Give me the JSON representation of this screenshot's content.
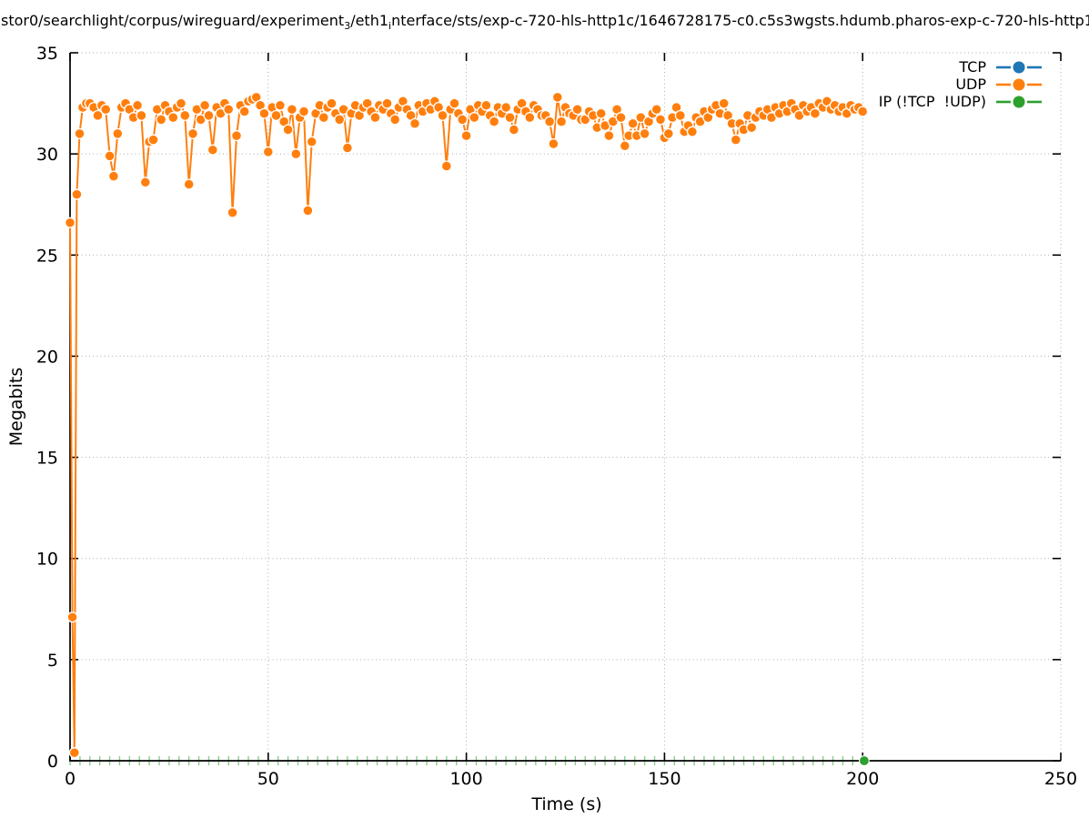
{
  "title": {
    "segments": [
      {
        "text": "stor0/searchlight/corpus/wireguard/experiment"
      },
      {
        "text": "3",
        "sub": true
      },
      {
        "text": "/eth1"
      },
      {
        "text": "i",
        "sub": true
      },
      {
        "text": "nterface/sts/exp-c-720-hls-http1c/1646728175-c0.c5s3wgsts.hdumb.pharos-exp-c-720-hls-http1"
      }
    ]
  },
  "legend": {
    "items": [
      {
        "label": "TCP",
        "color": "#1f77b4"
      },
      {
        "label": "UDP",
        "color": "#ff7f0e"
      },
      {
        "label": "IP (!TCP  !UDP)",
        "color": "#2ca02c"
      }
    ]
  },
  "chart_data": {
    "type": "line",
    "title": "stor0/searchlight/corpus/wireguard/experiment_3/eth1_interface/sts/exp-c-720-hls-http1c/1646728175-c0.c5s3wgsts.hdumb.pharos-exp-c-720-hls-http1",
    "xlabel": "Time (s)",
    "ylabel": "Megabits",
    "xlim": [
      0,
      250
    ],
    "ylim": [
      0,
      35
    ],
    "xticks": [
      0,
      50,
      100,
      150,
      200,
      250
    ],
    "yticks": [
      0,
      5,
      10,
      15,
      20,
      25,
      30,
      35
    ],
    "grid": "dotted",
    "grid_color": "#ababab",
    "legend_position": "top-right",
    "series": [
      {
        "name": "TCP",
        "color": "#1f77b4",
        "style": "linespoints",
        "points": []
      },
      {
        "name": "UDP",
        "color": "#ff7f0e",
        "style": "linespoints",
        "transient_points": [
          [
            0,
            26.6
          ],
          [
            0.6,
            7.1
          ],
          [
            1.1,
            0.4
          ],
          [
            1.7,
            28.0
          ],
          [
            2.4,
            31.0
          ],
          [
            3.2,
            32.3
          ],
          [
            4.1,
            32.5
          ]
        ],
        "t_start": 5,
        "t_step": 1,
        "values": [
          32.5,
          32.3,
          31.9,
          32.4,
          32.2,
          29.9,
          28.9,
          31.0,
          32.3,
          32.5,
          32.2,
          31.8,
          32.4,
          31.9,
          28.6,
          30.6,
          30.7,
          32.2,
          31.7,
          32.4,
          32.1,
          31.8,
          32.3,
          32.5,
          31.9,
          28.5,
          31.0,
          32.2,
          31.7,
          32.4,
          31.9,
          30.2,
          32.3,
          32.0,
          32.5,
          32.2,
          27.1,
          30.9,
          32.4,
          32.1,
          32.6,
          32.7,
          32.8,
          32.4,
          32.0,
          30.1,
          32.3,
          31.9,
          32.4,
          31.6,
          31.2,
          32.2,
          30.0,
          31.8,
          32.1,
          27.2,
          30.6,
          32.0,
          32.4,
          31.8,
          32.3,
          32.5,
          32.0,
          31.7,
          32.2,
          30.3,
          32.0,
          32.4,
          31.9,
          32.3,
          32.5,
          32.1,
          31.8,
          32.4,
          32.2,
          32.5,
          32.0,
          31.7,
          32.3,
          32.6,
          32.2,
          31.9,
          31.5,
          32.4,
          32.1,
          32.5,
          32.2,
          32.6,
          32.3,
          31.9,
          29.4,
          32.2,
          32.5,
          32.0,
          31.7,
          30.9,
          32.2,
          31.8,
          32.4,
          32.1,
          32.4,
          31.9,
          31.6,
          32.3,
          32.0,
          32.3,
          31.8,
          31.2,
          32.2,
          32.5,
          32.1,
          31.8,
          32.4,
          32.2,
          31.9,
          31.9,
          31.6,
          30.5,
          32.8,
          31.6,
          32.3,
          32.0,
          31.9,
          32.2,
          31.7,
          31.7,
          32.1,
          31.9,
          31.3,
          32.0,
          31.4,
          30.9,
          31.6,
          32.2,
          31.8,
          30.4,
          30.9,
          31.5,
          30.9,
          31.8,
          31.0,
          31.6,
          32.0,
          32.2,
          31.7,
          30.8,
          31.0,
          31.8,
          32.3,
          31.9,
          31.1,
          31.4,
          31.1,
          31.8,
          31.6,
          32.1,
          31.8,
          32.2,
          32.4,
          32.0,
          32.5,
          31.9,
          31.5,
          30.7,
          31.5,
          31.2,
          31.9,
          31.3,
          31.8,
          32.1,
          31.9,
          32.2,
          31.8,
          32.3,
          32.0,
          32.4,
          32.1,
          32.5,
          32.2,
          31.9,
          32.4,
          32.1,
          32.3,
          32.0,
          32.5,
          32.3,
          32.6,
          32.2,
          32.4,
          32.1,
          32.3,
          32.0,
          32.4,
          32.2,
          32.3,
          32.1
        ]
      },
      {
        "name": "IP (!TCP  !UDP)",
        "color": "#2ca02c",
        "style": "linespoints",
        "sample_marks": {
          "t_start": 0,
          "t_end": 200,
          "t_step": 2.5,
          "value": 0
        },
        "points": [
          [
            200.4,
            0
          ]
        ]
      }
    ]
  }
}
